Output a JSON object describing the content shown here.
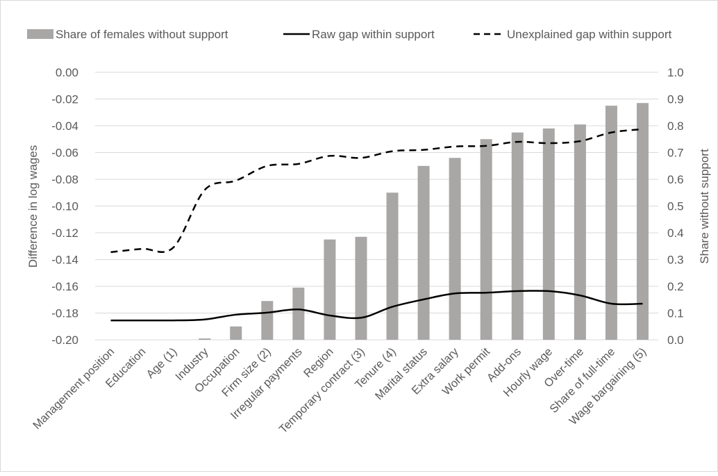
{
  "chart_data": {
    "type": "bar+line",
    "title": "",
    "categories": [
      "Management position",
      "Education",
      "Age (1)",
      "Industry",
      "Occupation",
      "Firm size (2)",
      "Irregular payments",
      "Region",
      "Temporary contract (3)",
      "Tenure (4)",
      "Marital status",
      "Extra salary",
      "Work permit",
      "Add-ons",
      "Hourly wage",
      "Over-time",
      "Share of full-time",
      "Wage bargaining (5)"
    ],
    "ylabel_left": "Difference in log wages",
    "ylabel_right": "Share without support",
    "ylim_left": [
      -0.2,
      0.0
    ],
    "ylim_right": [
      0.0,
      1.0
    ],
    "left_ticks": [
      "0.00",
      "-0.02",
      "-0.04",
      "-0.06",
      "-0.08",
      "-0.10",
      "-0.12",
      "-0.14",
      "-0.16",
      "-0.18",
      "-0.20"
    ],
    "right_ticks": [
      "1.0",
      "0.9",
      "0.8",
      "0.7",
      "0.6",
      "0.5",
      "0.4",
      "0.3",
      "0.2",
      "0.1",
      "0.0"
    ],
    "grid": true,
    "legend_position": "top",
    "series": [
      {
        "name": "Share of females without support",
        "type": "bar",
        "axis": "right",
        "color": "#a9a6a6",
        "values": [
          0.0,
          0.0,
          0.0,
          0.005,
          0.05,
          0.145,
          0.195,
          0.375,
          0.385,
          0.55,
          0.65,
          0.68,
          0.75,
          0.775,
          0.79,
          0.805,
          0.875,
          0.885
        ]
      },
      {
        "name": "Raw gap within support",
        "type": "line",
        "axis": "left",
        "style": "solid",
        "color": "#000000",
        "values": [
          -0.1855,
          -0.1855,
          -0.1855,
          -0.1848,
          -0.1812,
          -0.1797,
          -0.1773,
          -0.1818,
          -0.1835,
          -0.1753,
          -0.1698,
          -0.1653,
          -0.1648,
          -0.1636,
          -0.1636,
          -0.1668,
          -0.173,
          -0.173
        ]
      },
      {
        "name": "Unexplained gap within support",
        "type": "line",
        "axis": "left",
        "style": "dashed",
        "color": "#000000",
        "values": [
          -0.1345,
          -0.132,
          -0.131,
          -0.088,
          -0.081,
          -0.07,
          -0.0685,
          -0.0625,
          -0.064,
          -0.059,
          -0.058,
          -0.0555,
          -0.055,
          -0.052,
          -0.053,
          -0.0515,
          -0.045,
          -0.0425
        ]
      }
    ]
  }
}
